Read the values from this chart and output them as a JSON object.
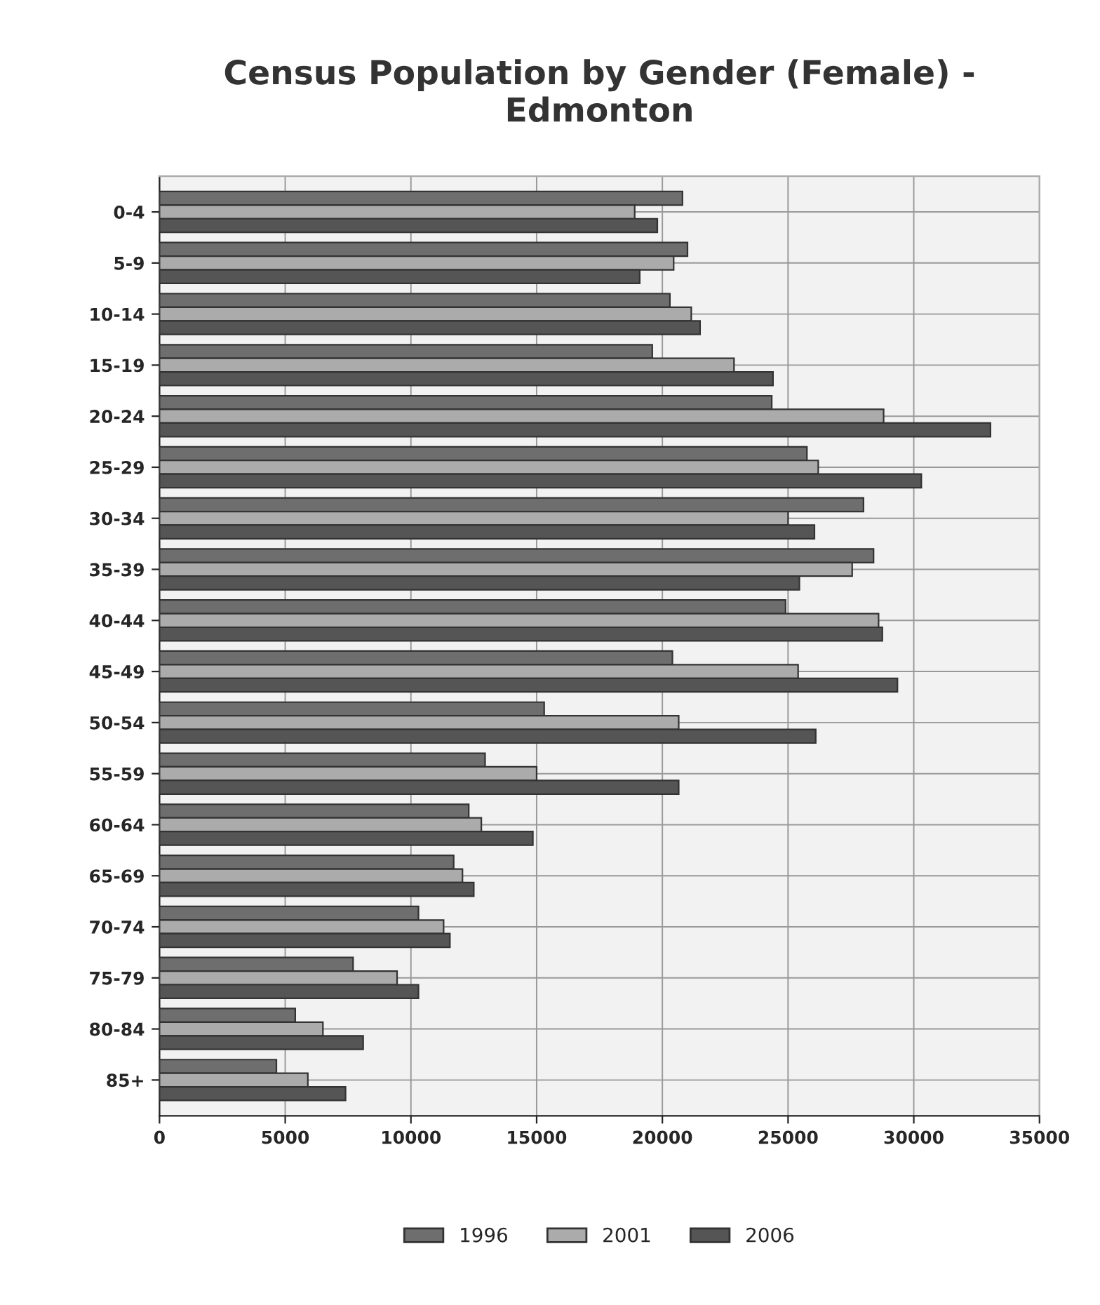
{
  "chart_data": {
    "type": "bar",
    "orientation": "horizontal",
    "title": "Census Population by Gender (Female) -\nEdmonton",
    "categories": [
      "0-4",
      "5-9",
      "10-14",
      "15-19",
      "20-24",
      "25-29",
      "30-34",
      "35-39",
      "40-44",
      "45-49",
      "50-54",
      "55-59",
      "60-64",
      "65-69",
      "70-74",
      "75-79",
      "80-84",
      "85+"
    ],
    "series": [
      {
        "name": "1996",
        "color": "#6e6e6e",
        "values": [
          20800,
          21000,
          20300,
          19600,
          24350,
          25750,
          28000,
          28400,
          24900,
          20400,
          15300,
          12950,
          12300,
          11700,
          10300,
          7700,
          5400,
          4650
        ]
      },
      {
        "name": "2001",
        "color": "#ababab",
        "values": [
          18900,
          20450,
          21150,
          22850,
          28800,
          26200,
          25000,
          27550,
          28600,
          25400,
          20650,
          15000,
          12800,
          12050,
          11300,
          9450,
          6500,
          5900
        ]
      },
      {
        "name": "2006",
        "color": "#555555",
        "values": [
          19800,
          19100,
          21500,
          24400,
          33050,
          30300,
          26050,
          25450,
          28750,
          29350,
          26100,
          20650,
          14850,
          12500,
          11550,
          10300,
          8100,
          7400
        ]
      }
    ],
    "xlim": [
      0,
      35000
    ],
    "xticks": [
      0,
      5000,
      10000,
      15000,
      20000,
      25000,
      30000,
      35000
    ],
    "grid": true,
    "legend": "bottom"
  }
}
